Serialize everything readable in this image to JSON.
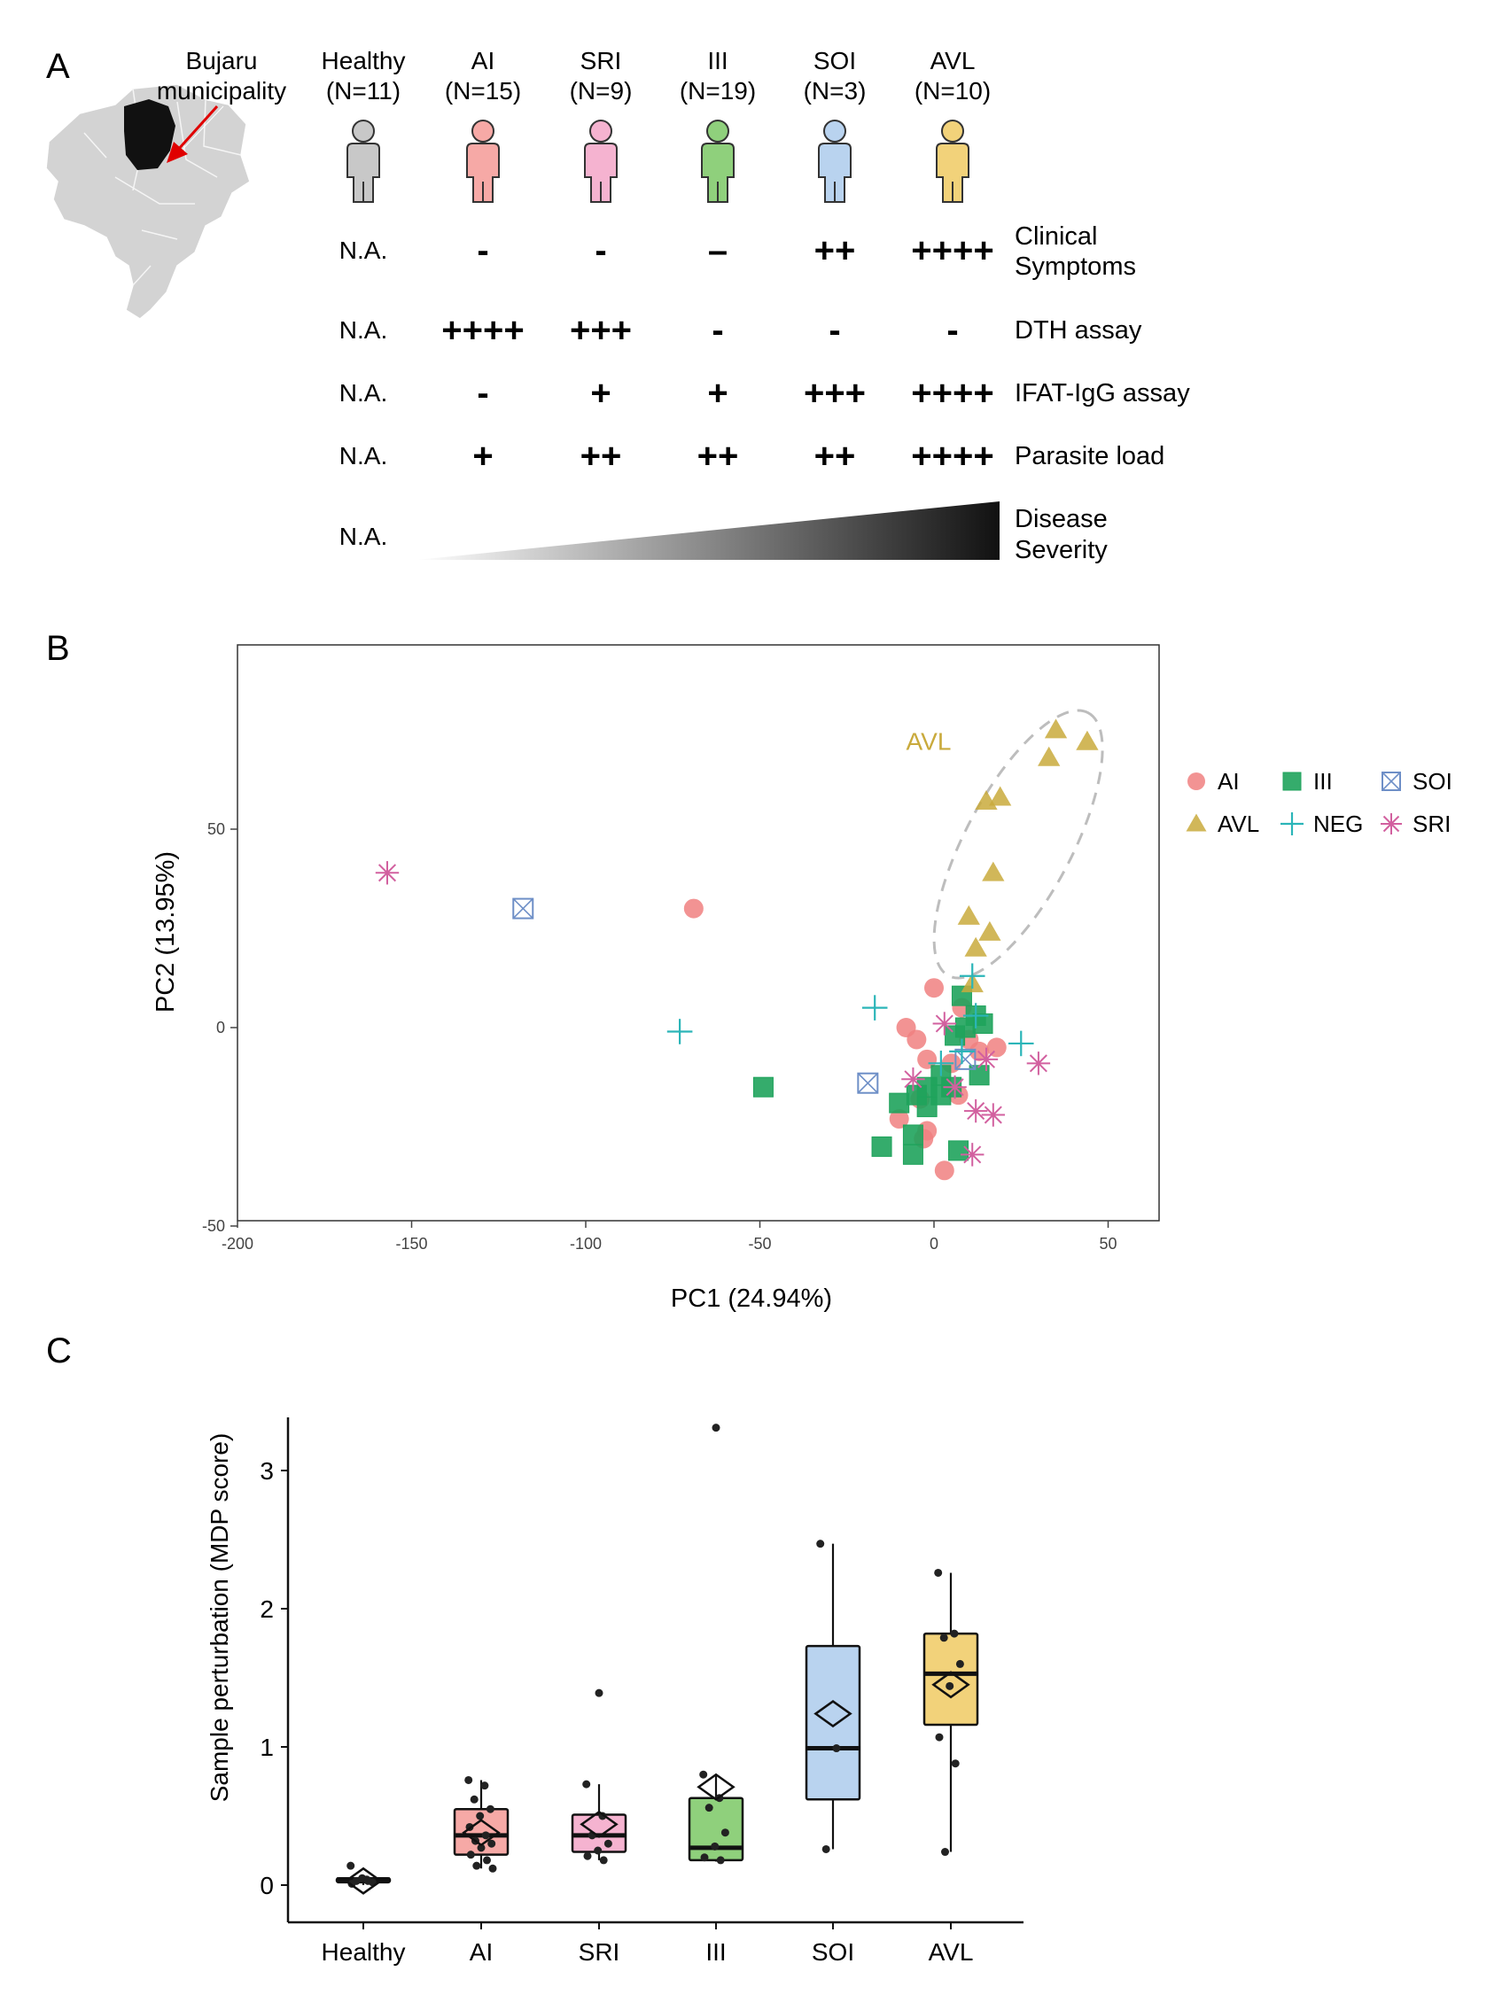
{
  "panels": {
    "a": {
      "letter": "A",
      "location_label_line1": "Bujaru",
      "location_label_line2": "municipality",
      "groups": [
        {
          "name": "Healthy",
          "n": "(N=11)",
          "color": "#c8c8c8"
        },
        {
          "name": "AI",
          "n": "(N=15)",
          "color": "#f6a9a6"
        },
        {
          "name": "SRI",
          "n": "(N=9)",
          "color": "#f5b3d0"
        },
        {
          "name": "III",
          "n": "(N=19)",
          "color": "#8fd07c"
        },
        {
          "name": "SOI",
          "n": "(N=3)",
          "color": "#b9d3ef"
        },
        {
          "name": "AVL",
          "n": "(N=10)",
          "color": "#f2d27a"
        }
      ],
      "rows": [
        {
          "label_line1": "Clinical",
          "label_line2": "Symptoms",
          "values": [
            "N.A.",
            "-",
            "-",
            "–",
            "++",
            "++++"
          ]
        },
        {
          "label_line1": "DTH assay",
          "label_line2": "",
          "values": [
            "N.A.",
            "++++",
            "+++",
            "-",
            "-",
            "-"
          ]
        },
        {
          "label_line1": "IFAT-IgG assay",
          "label_line2": "",
          "values": [
            "N.A.",
            "-",
            "+",
            "+",
            "+++",
            "++++"
          ]
        },
        {
          "label_line1": "Parasite load",
          "label_line2": "",
          "values": [
            "N.A.",
            "+",
            "++",
            "++",
            "++",
            "++++"
          ]
        }
      ],
      "severity": {
        "na": "N.A.",
        "label_line1": "Disease",
        "label_line2": "Severity"
      }
    },
    "b": {
      "letter": "B"
    },
    "c": {
      "letter": "C"
    }
  },
  "colors": {
    "AI": "#f08080",
    "III": "#1fa35c",
    "SOI": "#6e8fc7",
    "AVL": "#c9aa3c",
    "NEG": "#2bb5b8",
    "SRI": "#d2609f",
    "ellipse": "#bdbdbd"
  },
  "chart_data": [
    {
      "type": "scatter",
      "panel": "B",
      "xlabel": "PC1 (24.94%)",
      "ylabel": "PC2 (13.95%)",
      "xlim": [
        -200,
        65
      ],
      "ylim": [
        -50,
        95
      ],
      "xticks": [
        -200,
        -150,
        -100,
        -50,
        0,
        50
      ],
      "yticks": [
        -50,
        0,
        50
      ],
      "grid": false,
      "legend_position": "right",
      "annotation": "AVL",
      "series": [
        {
          "name": "AI",
          "marker": "circle",
          "points": [
            [
              -69,
              30
            ],
            [
              0,
              10
            ],
            [
              -8,
              0
            ],
            [
              -5,
              -3
            ],
            [
              8,
              5
            ],
            [
              10,
              -3
            ],
            [
              -2,
              -8
            ],
            [
              5,
              -9
            ],
            [
              13,
              -6
            ],
            [
              18,
              -5
            ],
            [
              -4,
              -18
            ],
            [
              -10,
              -23
            ],
            [
              -2,
              -26
            ],
            [
              -3,
              -28
            ],
            [
              7,
              -17
            ],
            [
              3,
              -36
            ]
          ]
        },
        {
          "name": "III",
          "marker": "square",
          "points": [
            [
              -49,
              -15
            ],
            [
              8,
              8
            ],
            [
              12,
              3
            ],
            [
              14,
              1
            ],
            [
              6,
              -2
            ],
            [
              9,
              0
            ],
            [
              2,
              -12
            ],
            [
              13,
              -12
            ],
            [
              -2,
              -15
            ],
            [
              -5,
              -17
            ],
            [
              -2,
              -20
            ],
            [
              -10,
              -19
            ],
            [
              -6,
              -27
            ],
            [
              -15,
              -30
            ],
            [
              -6,
              -32
            ],
            [
              7,
              -31
            ],
            [
              2,
              -17
            ],
            [
              5,
              -15
            ]
          ]
        },
        {
          "name": "SOI",
          "marker": "boxcross",
          "points": [
            [
              -118,
              30
            ],
            [
              -19,
              -14
            ],
            [
              9,
              -8
            ]
          ]
        },
        {
          "name": "AVL",
          "marker": "triangle",
          "points": [
            [
              35,
              75
            ],
            [
              44,
              72
            ],
            [
              33,
              68
            ],
            [
              15,
              57
            ],
            [
              19,
              58
            ],
            [
              17,
              39
            ],
            [
              10,
              28
            ],
            [
              16,
              24
            ],
            [
              12,
              20
            ],
            [
              11,
              11
            ]
          ]
        },
        {
          "name": "NEG",
          "marker": "plus",
          "points": [
            [
              -73,
              -1
            ],
            [
              -17,
              5
            ],
            [
              11,
              13
            ],
            [
              12,
              3
            ],
            [
              25,
              -4
            ],
            [
              2,
              -9
            ],
            [
              8,
              -6
            ]
          ]
        },
        {
          "name": "SRI",
          "marker": "asterisk",
          "points": [
            [
              -157,
              39
            ],
            [
              3,
              1
            ],
            [
              30,
              -9
            ],
            [
              15,
              -8
            ],
            [
              -6,
              -13
            ],
            [
              12,
              -21
            ],
            [
              17,
              -22
            ],
            [
              11,
              -32
            ],
            [
              6,
              -15
            ]
          ]
        }
      ]
    },
    {
      "type": "box",
      "panel": "C",
      "categories": [
        "Healthy",
        "AI",
        "SRI",
        "III",
        "SOI",
        "AVL"
      ],
      "ylabel": "Sample perturbation (MDP score)",
      "ylim": [
        -0.15,
        3.5
      ],
      "yticks": [
        0,
        1,
        2,
        3
      ],
      "boxes": [
        {
          "name": "Healthy",
          "color": "#c8c8c8",
          "q1": 0.02,
          "median": 0.04,
          "q3": 0.05,
          "whisker_low": 0.0,
          "whisker_high": 0.07,
          "mean": 0.03,
          "points": [
            0.14,
            0.04,
            0.03,
            0.02,
            0.05,
            0.01,
            0.03
          ],
          "outliers": []
        },
        {
          "name": "AI",
          "color": "#f6a9a6",
          "q1": 0.22,
          "median": 0.36,
          "q3": 0.55,
          "whisker_low": 0.12,
          "whisker_high": 0.76,
          "mean": 0.38,
          "points": [
            0.76,
            0.72,
            0.62,
            0.55,
            0.5,
            0.42,
            0.36,
            0.32,
            0.3,
            0.27,
            0.22,
            0.18,
            0.14,
            0.12
          ],
          "outliers": []
        },
        {
          "name": "SRI",
          "color": "#f5b3d0",
          "q1": 0.24,
          "median": 0.36,
          "q3": 0.51,
          "whisker_low": 0.18,
          "whisker_high": 0.73,
          "mean": 0.44,
          "points": [
            0.73,
            0.5,
            0.36,
            0.3,
            0.25,
            0.21,
            0.18
          ],
          "outliers": [
            1.39
          ]
        },
        {
          "name": "III",
          "color": "#8fd07c",
          "q1": 0.18,
          "median": 0.27,
          "q3": 0.63,
          "whisker_low": 0.17,
          "whisker_high": 0.8,
          "mean": 0.71,
          "points": [
            0.8,
            0.63,
            0.56,
            0.38,
            0.28,
            0.2,
            0.18
          ],
          "outliers": [
            3.31
          ]
        },
        {
          "name": "SOI",
          "color": "#b9d3ef",
          "q1": 0.62,
          "median": 0.99,
          "q3": 1.73,
          "whisker_low": 0.26,
          "whisker_high": 2.47,
          "mean": 1.24,
          "points": [
            2.47,
            0.99,
            0.26
          ],
          "outliers": []
        },
        {
          "name": "AVL",
          "color": "#f2d27a",
          "q1": 1.16,
          "median": 1.53,
          "q3": 1.82,
          "whisker_low": 0.24,
          "whisker_high": 2.26,
          "mean": 1.45,
          "points": [
            2.26,
            1.82,
            1.79,
            1.6,
            1.44,
            1.07,
            0.88,
            0.24
          ],
          "outliers": []
        }
      ]
    }
  ]
}
